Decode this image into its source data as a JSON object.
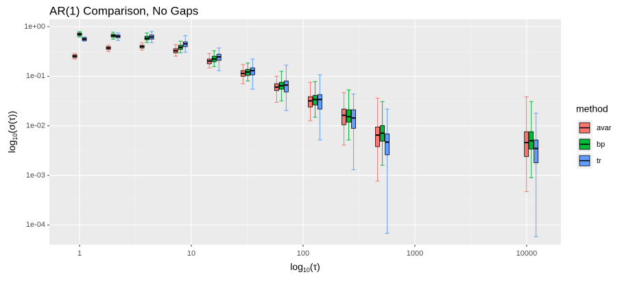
{
  "chart_data": {
    "type": "box",
    "title": "AR(1) Comparison, No Gaps",
    "xlabel": {
      "base": "log",
      "sub": "10",
      "rest": "(τ)"
    },
    "ylabel": {
      "base": "log",
      "sub": "10",
      "rest": "(σ(τ))"
    },
    "legend_title": "method",
    "legend_position": "right",
    "grid": true,
    "xscale": "log",
    "yscale": "log",
    "x": [
      1,
      2,
      4,
      8,
      16,
      32,
      64,
      128,
      256,
      512,
      11000
    ],
    "xlim": [
      0.537,
      20280
    ],
    "ylim": [
      4e-05,
      1.42
    ],
    "xticks": [
      1,
      10,
      100,
      1000,
      10000
    ],
    "yticks": [
      {
        "value": 1,
        "label": "1e+00"
      },
      {
        "value": 0.1,
        "label": "1e-01"
      },
      {
        "value": 0.01,
        "label": "1e-02"
      },
      {
        "value": 0.001,
        "label": "1e-03"
      },
      {
        "value": 0.0001,
        "label": "1e-04"
      }
    ],
    "series": [
      {
        "name": "avar",
        "color": "#F8766D",
        "low": [
          0.223,
          0.317,
          0.338,
          0.254,
          0.148,
          0.0708,
          0.0299,
          0.0127,
          0.0041,
          0.00077,
          0.00047
        ],
        "q1": [
          0.238,
          0.349,
          0.372,
          0.298,
          0.179,
          0.1,
          0.0515,
          0.024,
          0.0105,
          0.0038,
          0.0024
        ],
        "median": [
          0.254,
          0.372,
          0.397,
          0.327,
          0.203,
          0.114,
          0.0604,
          0.0319,
          0.0163,
          0.0065,
          0.0046
        ],
        "q3": [
          0.271,
          0.397,
          0.423,
          0.36,
          0.223,
          0.13,
          0.0708,
          0.0387,
          0.0218,
          0.0095,
          0.0076
        ],
        "high": [
          0.288,
          0.423,
          0.48,
          0.436,
          0.288,
          0.173,
          0.1,
          0.0755,
          0.0468,
          0.0363,
          0.0387
        ]
      },
      {
        "name": "bp",
        "color": "#00BA38",
        "low": [
          0.62,
          0.563,
          0.48,
          0.298,
          0.157,
          0.0805,
          0.0319,
          0.0149,
          0.0052,
          0.0016,
          0.0009
        ],
        "q1": [
          0.661,
          0.62,
          0.546,
          0.349,
          0.197,
          0.104,
          0.055,
          0.0264,
          0.0119,
          0.0049,
          0.0034
        ],
        "median": [
          0.705,
          0.661,
          0.582,
          0.384,
          0.223,
          0.122,
          0.0644,
          0.034,
          0.0153,
          0.0071,
          0.005
        ],
        "q3": [
          0.75,
          0.705,
          0.64,
          0.423,
          0.254,
          0.138,
          0.0755,
          0.0412,
          0.0211,
          0.0101,
          0.0076
        ],
        "high": [
          0.8,
          0.775,
          0.75,
          0.512,
          0.327,
          0.185,
          0.126,
          0.078,
          0.0532,
          0.0309,
          0.0309
        ]
      },
      {
        "name": "tr",
        "color": "#619CFF",
        "low": [
          0.512,
          0.528,
          0.48,
          0.307,
          0.13,
          0.055,
          0.0204,
          0.0052,
          0.0013,
          6.8e-05,
          5.8e-05
        ],
        "q1": [
          0.528,
          0.6,
          0.563,
          0.397,
          0.21,
          0.107,
          0.0483,
          0.0218,
          0.0089,
          0.0026,
          0.0018
        ],
        "median": [
          0.563,
          0.64,
          0.62,
          0.451,
          0.246,
          0.13,
          0.0665,
          0.034,
          0.0144,
          0.0047,
          0.0035
        ],
        "q3": [
          0.6,
          0.682,
          0.682,
          0.496,
          0.279,
          0.148,
          0.0805,
          0.0426,
          0.0211,
          0.0069,
          0.0052
        ],
        "high": [
          0.62,
          0.75,
          0.8,
          0.661,
          0.372,
          0.223,
          0.168,
          0.107,
          0.044,
          0.0218,
          0.018
        ]
      }
    ]
  }
}
